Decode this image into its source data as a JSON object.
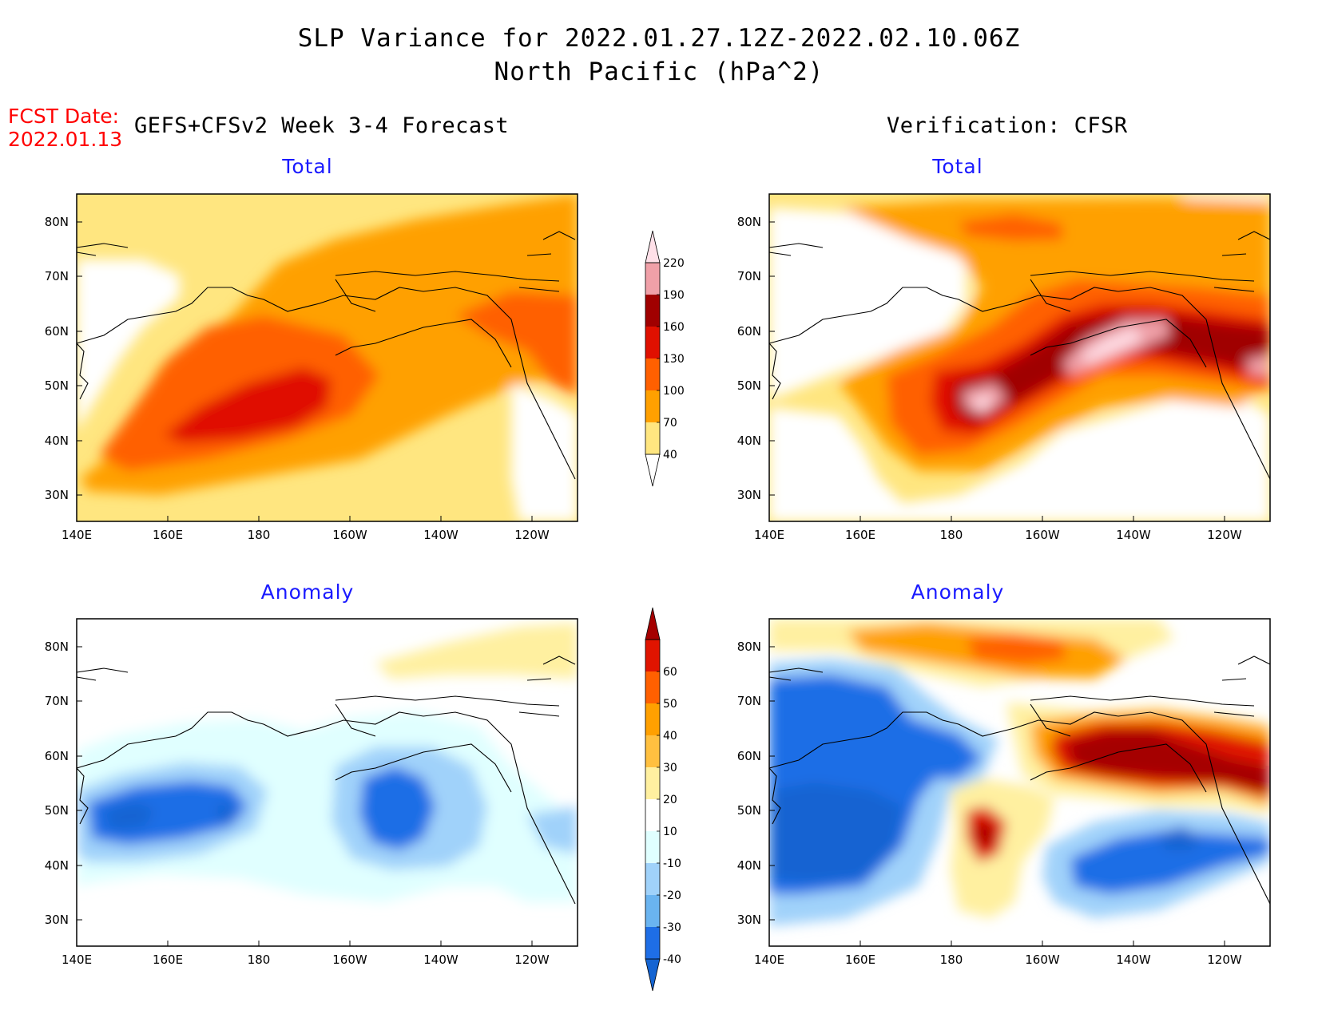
{
  "title": {
    "line1": "SLP Variance for 2022.01.27.12Z-2022.02.10.06Z",
    "line2": "North Pacific (hPa^2)"
  },
  "forecast_date": {
    "label": "FCST Date:",
    "value": "2022.01.13"
  },
  "columns": {
    "left": "GEFS+CFSv2 Week 3-4 Forecast",
    "right": "Verification: CFSR"
  },
  "panels": {
    "forecast_total": {
      "title": "Total"
    },
    "forecast_anomaly": {
      "title": "Anomaly"
    },
    "verification_total": {
      "title": "Total"
    },
    "verification_anomaly": {
      "title": "Anomaly"
    }
  },
  "map_axes": {
    "lon_ticks": [
      "140E",
      "160E",
      "180",
      "160W",
      "140W",
      "120W"
    ],
    "lat_ticks": [
      "80N",
      "70N",
      "60N",
      "50N",
      "40N",
      "30N"
    ]
  },
  "colorbars": {
    "total": {
      "levels": [
        "40",
        "70",
        "100",
        "130",
        "160",
        "190",
        "220"
      ],
      "colors": [
        "#ffffff",
        "#ffe680",
        "#ffa000",
        "#ff6000",
        "#e01000",
        "#a00000",
        "#f0a0a8",
        "#ffe0e8"
      ]
    },
    "anomaly": {
      "levels": [
        "-40",
        "-30",
        "-20",
        "-10",
        "10",
        "20",
        "30",
        "40",
        "50",
        "60"
      ],
      "colors": [
        "#1464d2",
        "#1e6ee6",
        "#6ab4f0",
        "#a0d2fa",
        "#e0ffff",
        "#ffffff",
        "#fff0a0",
        "#ffc040",
        "#ffa000",
        "#ff6000",
        "#e01400",
        "#a50000"
      ]
    }
  }
}
